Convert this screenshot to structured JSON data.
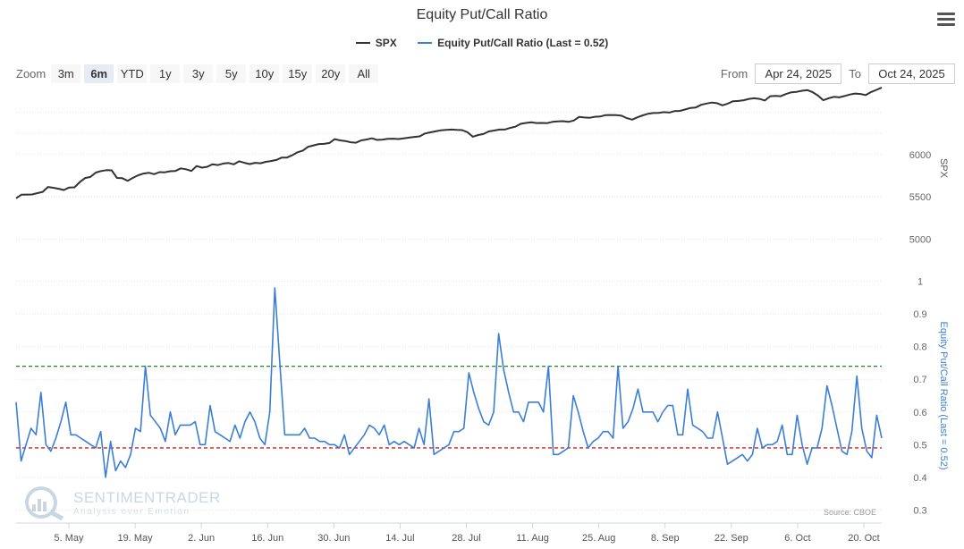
{
  "title": "Equity Put/Call Ratio",
  "legend": [
    {
      "name": "SPX",
      "color": "#333333"
    },
    {
      "name": "Equity Put/Call Ratio (Last = 0.52)",
      "color": "#3a7fd5"
    }
  ],
  "zoom": {
    "label": "Zoom",
    "buttons": [
      "3m",
      "6m",
      "YTD",
      "1y",
      "3y",
      "5y",
      "10y",
      "15y",
      "20y",
      "All"
    ],
    "active": "6m"
  },
  "range": {
    "from_label": "From",
    "from_value": "Apr 24, 2025",
    "to_label": "To",
    "to_value": "Oct 24, 2025"
  },
  "watermark": {
    "main": "SENTIMENTRADER",
    "sub": "Analysis over Emotion"
  },
  "source": "Source: CBOE",
  "chart_data": {
    "type": "line",
    "x_tick_labels": [
      "5. May",
      "19. May",
      "2. Jun",
      "16. Jun",
      "30. Jun",
      "14. Jul",
      "28. Jul",
      "11. Aug",
      "25. Aug",
      "8. Sep",
      "22. Sep",
      "6. Oct",
      "20. Oct"
    ],
    "x_range": [
      "Apr 24, 2025",
      "Oct 24, 2025"
    ],
    "panels": [
      {
        "name": "SPX",
        "axis_title": "SPX",
        "y_ticks": [
          5000,
          5500,
          6000
        ],
        "ylim": [
          4900,
          6800
        ],
        "grid": true,
        "series": [
          {
            "name": "SPX",
            "color": "#333333",
            "values": [
              5484,
              5525,
              5527,
              5528,
              5544,
              5559,
              5617,
              5607,
              5596,
              5581,
              5610,
              5612,
              5675,
              5722,
              5735,
              5787,
              5805,
              5815,
              5813,
              5723,
              5720,
              5690,
              5724,
              5755,
              5775,
              5785,
              5768,
              5792,
              5790,
              5802,
              5806,
              5836,
              5826,
              5806,
              5864,
              5845,
              5855,
              5885,
              5875,
              5893,
              5900,
              5884,
              5920,
              5902,
              5887,
              5902,
              5896,
              5913,
              5923,
              5936,
              5963,
              5964,
              5991,
              6026,
              6046,
              6092,
              6108,
              6123,
              6125,
              6136,
              6181,
              6167,
              6159,
              6144,
              6139,
              6167,
              6177,
              6191,
              6172,
              6176,
              6186,
              6187,
              6183,
              6191,
              6199,
              6208,
              6214,
              6248,
              6262,
              6273,
              6286,
              6290,
              6294,
              6290,
              6288,
              6263,
              6210,
              6230,
              6242,
              6272,
              6283,
              6294,
              6294,
              6313,
              6328,
              6362,
              6373,
              6380,
              6371,
              6372,
              6370,
              6385,
              6391,
              6394,
              6385,
              6401,
              6443,
              6437,
              6434,
              6445,
              6448,
              6465,
              6466,
              6464,
              6458,
              6429,
              6412,
              6439,
              6462,
              6481,
              6490,
              6491,
              6500,
              6495,
              6513,
              6515,
              6532,
              6550,
              6555,
              6587,
              6602,
              6613,
              6606,
              6580,
              6601,
              6629,
              6632,
              6641,
              6656,
              6664,
              6656,
              6637,
              6688,
              6692,
              6688,
              6715,
              6735,
              6740,
              6753,
              6760,
              6736,
              6695,
              6641,
              6664,
              6681,
              6674,
              6690,
              6708,
              6720,
              6714,
              6702,
              6738,
              6763,
              6790
            ]
          }
        ]
      },
      {
        "name": "Equity Put/Call Ratio",
        "axis_title": "Equity Put/Call Ratio (Last = 0.52)",
        "y_ticks": [
          0.3,
          0.4,
          0.5,
          0.6,
          0.7,
          0.8,
          0.9,
          1
        ],
        "ylim": [
          0.26,
          1.04
        ],
        "grid": true,
        "reference_lines": [
          {
            "value": 0.74,
            "color": "#1a8a1a",
            "style": "dashed"
          },
          {
            "value": 0.49,
            "color": "#cc2222",
            "style": "dashed"
          }
        ],
        "series": [
          {
            "name": "Equity Put/Call Ratio",
            "color": "#3a7fd5",
            "values": [
              0.63,
              0.45,
              0.5,
              0.55,
              0.53,
              0.66,
              0.5,
              0.48,
              0.52,
              0.57,
              0.63,
              0.53,
              0.53,
              0.52,
              0.51,
              0.5,
              0.49,
              0.54,
              0.4,
              0.51,
              0.42,
              0.45,
              0.43,
              0.47,
              0.55,
              0.54,
              0.74,
              0.59,
              0.57,
              0.55,
              0.51,
              0.6,
              0.53,
              0.56,
              0.56,
              0.56,
              0.57,
              0.5,
              0.5,
              0.62,
              0.54,
              0.53,
              0.52,
              0.51,
              0.56,
              0.52,
              0.57,
              0.6,
              0.57,
              0.52,
              0.5,
              0.6,
              0.98,
              0.75,
              0.53,
              0.53,
              0.53,
              0.53,
              0.55,
              0.52,
              0.52,
              0.51,
              0.51,
              0.5,
              0.5,
              0.49,
              0.53,
              0.47,
              0.49,
              0.51,
              0.53,
              0.56,
              0.55,
              0.53,
              0.56,
              0.5,
              0.51,
              0.5,
              0.51,
              0.5,
              0.49,
              0.55,
              0.5,
              0.64,
              0.47,
              0.48,
              0.49,
              0.5,
              0.54,
              0.54,
              0.55,
              0.72,
              0.66,
              0.61,
              0.57,
              0.56,
              0.6,
              0.84,
              0.73,
              0.66,
              0.6,
              0.6,
              0.57,
              0.63,
              0.63,
              0.63,
              0.6,
              0.74,
              0.47,
              0.47,
              0.48,
              0.49,
              0.65,
              0.6,
              0.54,
              0.49,
              0.51,
              0.52,
              0.54,
              0.54,
              0.52,
              0.74,
              0.55,
              0.57,
              0.61,
              0.67,
              0.6,
              0.6,
              0.6,
              0.57,
              0.6,
              0.62,
              0.62,
              0.53,
              0.53,
              0.67,
              0.56,
              0.55,
              0.54,
              0.52,
              0.52,
              0.6,
              0.52,
              0.44,
              0.45,
              0.46,
              0.47,
              0.45,
              0.47,
              0.55,
              0.49,
              0.5,
              0.5,
              0.51,
              0.56,
              0.47,
              0.47,
              0.59,
              0.5,
              0.44,
              0.49,
              0.49,
              0.55,
              0.68,
              0.62,
              0.55,
              0.48,
              0.47,
              0.54,
              0.71,
              0.55,
              0.48,
              0.46,
              0.59,
              0.52
            ]
          }
        ]
      }
    ]
  }
}
